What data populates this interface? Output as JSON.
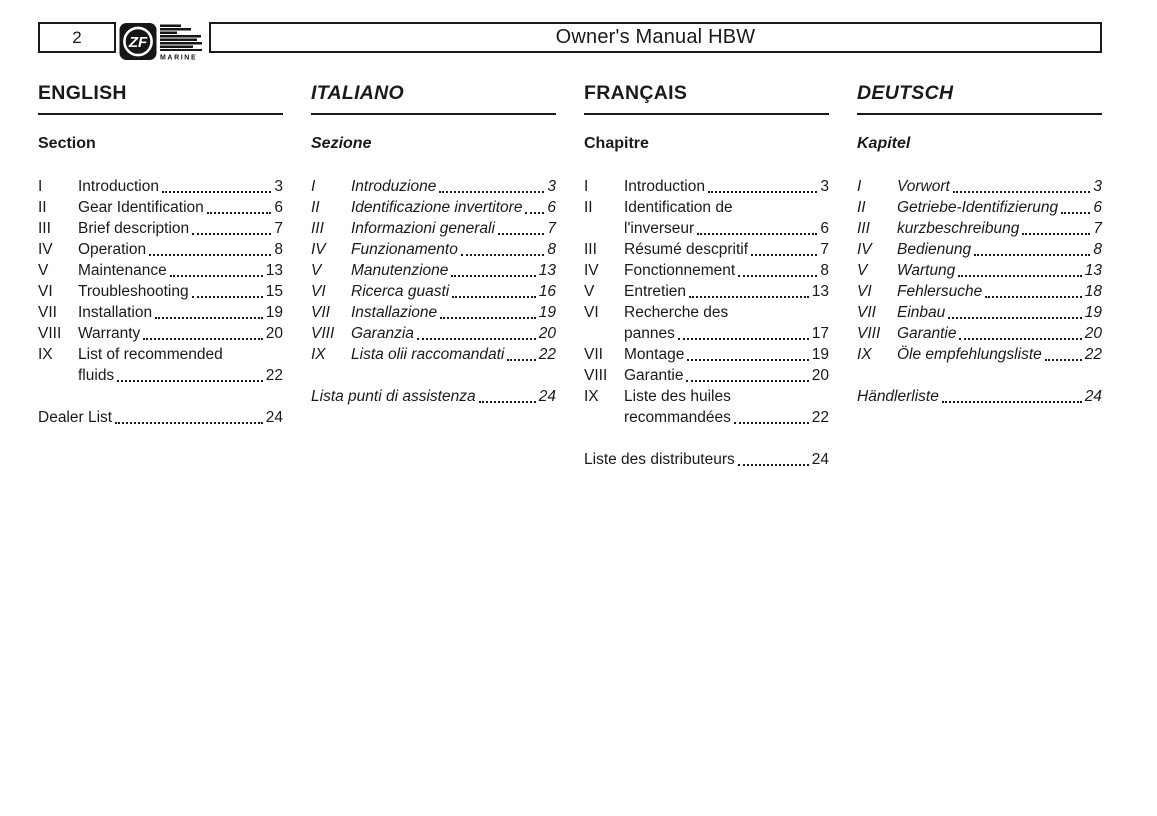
{
  "header": {
    "page_number": "2",
    "title": "Owner's Manual HBW",
    "logo": {
      "monogram": "ZF",
      "wordmark": "MARINE"
    }
  },
  "columns": [
    {
      "id": "english",
      "language": "ENGLISH",
      "section_label": "Section",
      "italic": false,
      "entries": [
        {
          "num": "I",
          "lines": [
            {
              "text": "Introduction",
              "page": "3"
            }
          ]
        },
        {
          "num": "II",
          "lines": [
            {
              "text": "Gear Identification",
              "page": "6"
            }
          ]
        },
        {
          "num": "III",
          "lines": [
            {
              "text": "Brief description",
              "page": "7"
            }
          ]
        },
        {
          "num": "IV",
          "lines": [
            {
              "text": "Operation",
              "page": "8"
            }
          ]
        },
        {
          "num": "V",
          "lines": [
            {
              "text": "Maintenance",
              "page": "13"
            }
          ]
        },
        {
          "num": "VI",
          "lines": [
            {
              "text": "Troubleshooting",
              "page": "15"
            }
          ]
        },
        {
          "num": "VII",
          "lines": [
            {
              "text": "Installation",
              "page": "19"
            }
          ]
        },
        {
          "num": "VIII",
          "lines": [
            {
              "text": "Warranty",
              "page": "20"
            }
          ]
        },
        {
          "num": "IX",
          "lines": [
            {
              "text": "List of recommended"
            },
            {
              "text": "fluids",
              "page": "22"
            }
          ]
        }
      ],
      "footer": {
        "text": "Dealer List",
        "page": "24"
      }
    },
    {
      "id": "italiano",
      "language": "ITALIANO",
      "section_label": "Sezione",
      "italic": true,
      "entries": [
        {
          "num": "I",
          "lines": [
            {
              "text": "Introduzione",
              "page": "3"
            }
          ]
        },
        {
          "num": "II",
          "lines": [
            {
              "text": "Identificazione invertitore",
              "page": "6"
            }
          ]
        },
        {
          "num": "III",
          "lines": [
            {
              "text": "Informazioni generali",
              "page": "7"
            }
          ]
        },
        {
          "num": "IV",
          "lines": [
            {
              "text": "Funzionamento",
              "page": "8"
            }
          ]
        },
        {
          "num": "V",
          "lines": [
            {
              "text": "Manutenzione",
              "page": "13"
            }
          ]
        },
        {
          "num": "VI",
          "lines": [
            {
              "text": "Ricerca guasti",
              "page": "16"
            }
          ]
        },
        {
          "num": "VII",
          "lines": [
            {
              "text": "Installazione",
              "page": "19"
            }
          ]
        },
        {
          "num": "VIII",
          "lines": [
            {
              "text": "Garanzia",
              "page": "20"
            }
          ]
        },
        {
          "num": "IX",
          "lines": [
            {
              "text": "Lista olii raccomandati",
              "page": "22"
            }
          ]
        }
      ],
      "footer": {
        "text": "Lista punti di assistenza",
        "page": "24"
      }
    },
    {
      "id": "francais",
      "language": "FRANÇAIS",
      "section_label": "Chapitre",
      "italic": false,
      "entries": [
        {
          "num": "I",
          "lines": [
            {
              "text": "Introduction",
              "page": "3"
            }
          ]
        },
        {
          "num": "II",
          "lines": [
            {
              "text": "Identification de"
            },
            {
              "text": "l'inverseur",
              "page": "6"
            }
          ]
        },
        {
          "num": "III",
          "lines": [
            {
              "text": "Résumé descpritif",
              "page": "7"
            }
          ]
        },
        {
          "num": "IV",
          "lines": [
            {
              "text": "Fonctionnement",
              "page": "8"
            }
          ]
        },
        {
          "num": "V",
          "lines": [
            {
              "text": "Entretien",
              "page": "13"
            }
          ]
        },
        {
          "num": "VI",
          "lines": [
            {
              "text": "Recherche des"
            },
            {
              "text": "pannes",
              "page": "17"
            }
          ]
        },
        {
          "num": "VII",
          "lines": [
            {
              "text": "Montage",
              "page": "19"
            }
          ]
        },
        {
          "num": "VIII",
          "lines": [
            {
              "text": "Garantie",
              "page": "20"
            }
          ]
        },
        {
          "num": "IX",
          "lines": [
            {
              "text": "Liste des huiles"
            },
            {
              "text": "recommandées",
              "page": "22"
            }
          ]
        }
      ],
      "footer": {
        "text": "Liste des distributeurs",
        "page": "24"
      }
    },
    {
      "id": "deutsch",
      "language": "DEUTSCH",
      "section_label": "Kapitel",
      "italic": true,
      "entries": [
        {
          "num": "I",
          "lines": [
            {
              "text": "Vorwort",
              "page": "3"
            }
          ]
        },
        {
          "num": "II",
          "lines": [
            {
              "text": "Getriebe-Identifizierung",
              "page": "6"
            }
          ]
        },
        {
          "num": "III",
          "lines": [
            {
              "text": "kurzbeschreibung",
              "page": "7"
            }
          ]
        },
        {
          "num": "IV",
          "lines": [
            {
              "text": "Bedienung",
              "page": "8"
            }
          ]
        },
        {
          "num": "V",
          "lines": [
            {
              "text": "Wartung",
              "page": "13"
            }
          ]
        },
        {
          "num": "VI",
          "lines": [
            {
              "text": "Fehlersuche",
              "page": "18"
            }
          ]
        },
        {
          "num": "VII",
          "lines": [
            {
              "text": "Einbau",
              "page": "19"
            }
          ]
        },
        {
          "num": "VIII",
          "lines": [
            {
              "text": "Garantie",
              "page": "20"
            }
          ]
        },
        {
          "num": "IX",
          "lines": [
            {
              "text": "Öle empfehlungsliste",
              "page": "22"
            }
          ]
        }
      ],
      "footer": {
        "text": "Händlerliste",
        "page": "24"
      }
    }
  ]
}
